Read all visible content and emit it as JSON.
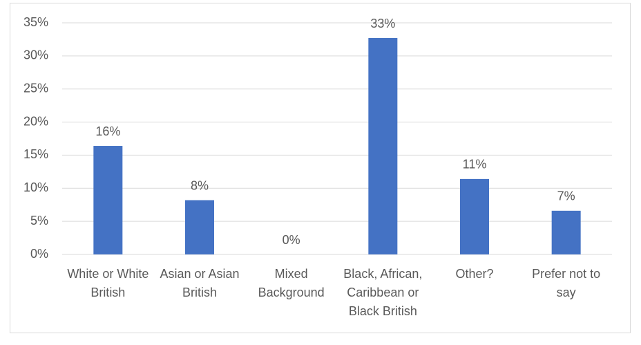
{
  "chart_data": {
    "type": "bar",
    "categories": [
      "White or White British",
      "Asian or Asian British",
      "Mixed Background",
      "Black, African, Caribbean or Black British",
      "Other?",
      "Prefer not to say"
    ],
    "values": [
      16.4,
      8.2,
      0,
      32.7,
      11.4,
      6.6
    ],
    "value_labels": [
      "16%",
      "8%",
      "0%",
      "33%",
      "11%",
      "7%"
    ],
    "color": "#4472c4",
    "ylim": [
      0,
      35
    ],
    "yticks": [
      {
        "value": 0,
        "label": "0%"
      },
      {
        "value": 5,
        "label": "5%"
      },
      {
        "value": 10,
        "label": "10%"
      },
      {
        "value": 15,
        "label": "15%"
      },
      {
        "value": 20,
        "label": "20%"
      },
      {
        "value": 25,
        "label": "25%"
      },
      {
        "value": 30,
        "label": "30%"
      },
      {
        "value": 35,
        "label": "35%"
      }
    ],
    "grid": true
  }
}
